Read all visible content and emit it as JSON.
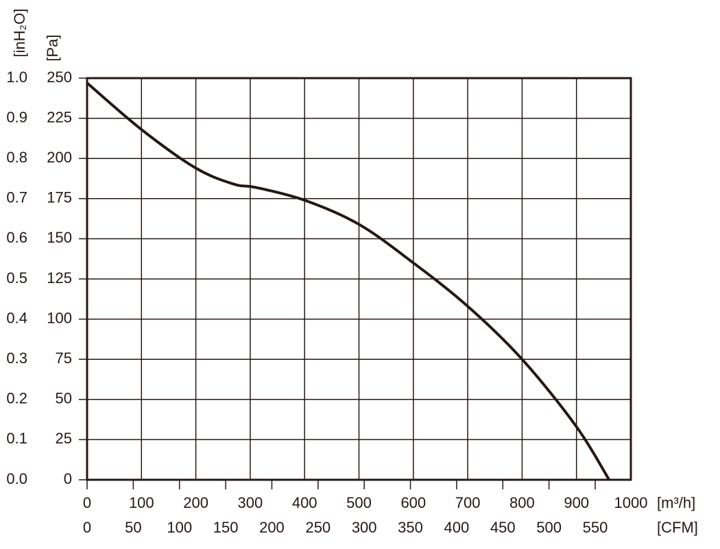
{
  "chart_data": {
    "type": "line",
    "x_label": "[m³/h]",
    "x2_label": "[CFM]",
    "y_label": "[Pa]",
    "y2_label": "[inH₂O]",
    "x": [
      0,
      100,
      200,
      270,
      310,
      400,
      500,
      600,
      700,
      800,
      900,
      960
    ],
    "values": [
      247,
      218,
      194,
      184,
      182,
      174,
      159,
      135,
      108,
      75,
      33,
      0
    ],
    "color": "#231815",
    "xlim": [
      0,
      1000
    ],
    "xticks": [
      0,
      100,
      200,
      300,
      400,
      500,
      600,
      700,
      800,
      900,
      1000
    ],
    "x2lim": [
      0,
      588.6
    ],
    "x2ticks": [
      0,
      50,
      100,
      150,
      200,
      250,
      300,
      350,
      400,
      450,
      500,
      550
    ],
    "ylim": [
      0,
      250
    ],
    "yticks": [
      0,
      25,
      50,
      75,
      100,
      125,
      150,
      175,
      200,
      225,
      250
    ],
    "y2lim": [
      0,
      1
    ],
    "y2ticks": [
      {
        "value": 0,
        "label": "0.0"
      },
      0.1,
      0.2,
      0.3,
      0.4,
      0.5,
      0.6,
      0.7,
      0.8,
      0.9,
      {
        "value": 1,
        "label": "1.0"
      }
    ],
    "grid": true
  }
}
